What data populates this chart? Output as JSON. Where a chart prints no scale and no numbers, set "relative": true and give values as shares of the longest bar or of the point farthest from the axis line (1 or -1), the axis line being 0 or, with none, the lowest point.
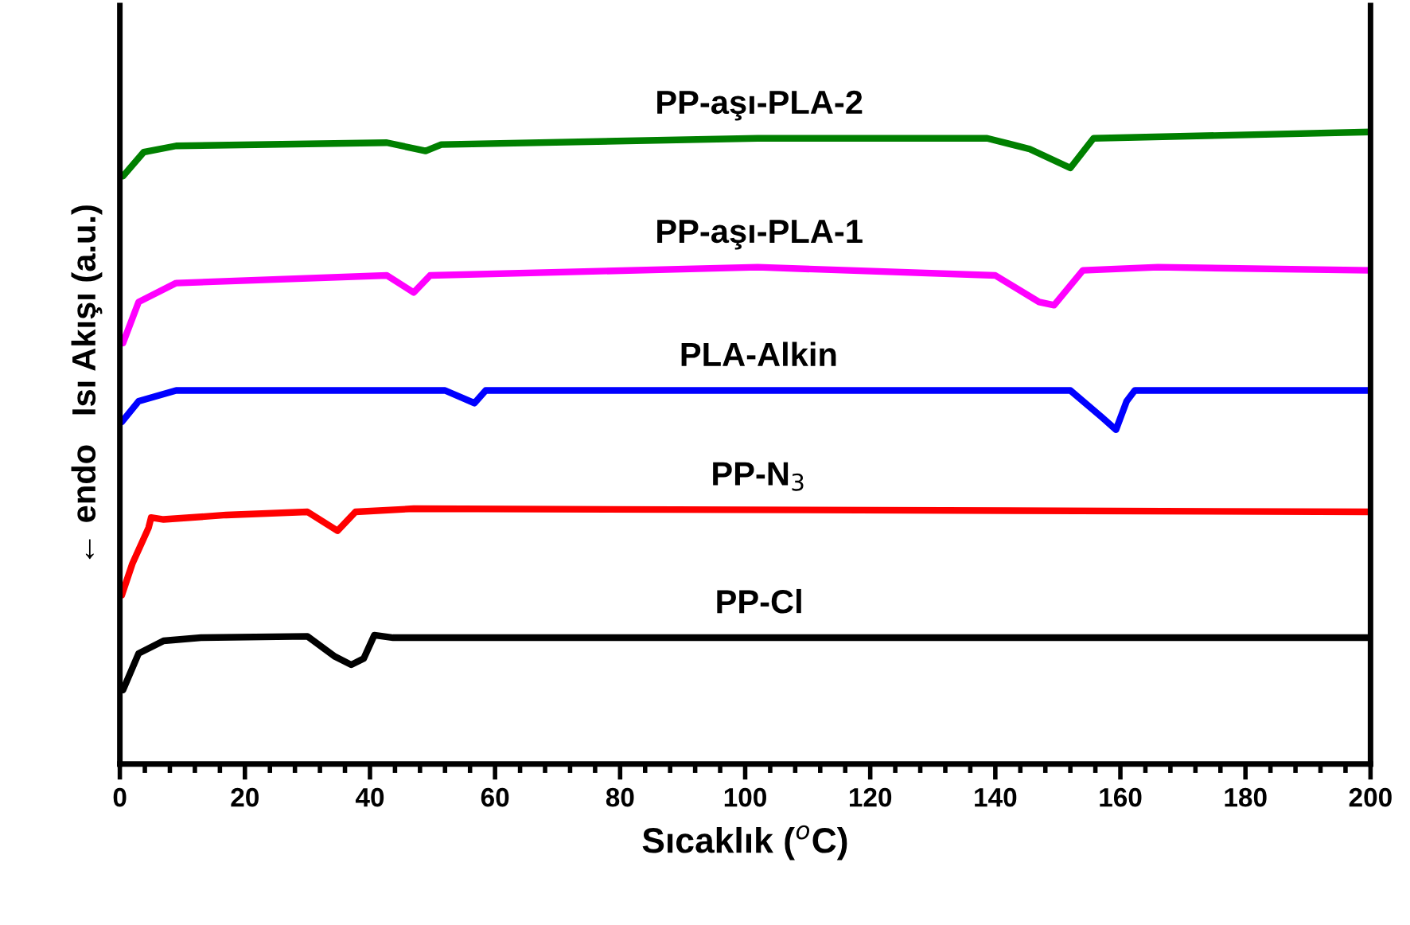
{
  "chart_data": {
    "type": "line",
    "relative": true,
    "xlabel": "Sıcaklık ($^{o}$C)",
    "ylabel": "← endo   Isı Akışı (a.u.)",
    "xlim": [
      0,
      200
    ],
    "xticks": [
      0,
      {
        "value": 4,
        "label": null
      },
      {
        "value": 8,
        "label": null
      },
      {
        "value": 12,
        "label": null
      },
      {
        "value": 16,
        "label": null
      },
      20,
      {
        "value": 24,
        "label": null
      },
      {
        "value": 28,
        "label": null
      },
      {
        "value": 32,
        "label": null
      },
      {
        "value": 36,
        "label": null
      },
      40,
      {
        "value": 44,
        "label": null
      },
      {
        "value": 48,
        "label": null
      },
      {
        "value": 52,
        "label": null
      },
      {
        "value": 56,
        "label": null
      },
      60,
      {
        "value": 64,
        "label": null
      },
      {
        "value": 68,
        "label": null
      },
      {
        "value": 72,
        "label": null
      },
      {
        "value": 76,
        "label": null
      },
      80,
      {
        "value": 84,
        "label": null
      },
      {
        "value": 88,
        "label": null
      },
      {
        "value": 92,
        "label": null
      },
      {
        "value": 96,
        "label": null
      },
      100,
      {
        "value": 104,
        "label": null
      },
      {
        "value": 108,
        "label": null
      },
      {
        "value": 112,
        "label": null
      },
      {
        "value": 116,
        "label": null
      },
      120,
      {
        "value": 124,
        "label": null
      },
      {
        "value": 128,
        "label": null
      },
      {
        "value": 132,
        "label": null
      },
      {
        "value": 136,
        "label": null
      },
      140,
      {
        "value": 144,
        "label": null
      },
      {
        "value": 148,
        "label": null
      },
      {
        "value": 152,
        "label": null
      },
      {
        "value": 156,
        "label": null
      },
      160,
      {
        "value": 164,
        "label": null
      },
      {
        "value": 168,
        "label": null
      },
      {
        "value": 172,
        "label": null
      },
      {
        "value": 176,
        "label": null
      },
      180,
      {
        "value": 184,
        "label": null
      },
      {
        "value": 188,
        "label": null
      },
      {
        "value": 192,
        "label": null
      },
      {
        "value": 196,
        "label": null
      },
      200
    ],
    "tick_labels": "x",
    "grid": false,
    "legend": false,
    "marker": "none",
    "line_style": "solid",
    "series": [
      {
        "name": "PP-Cl",
        "color": "#000000",
        "x": [
          0.5,
          3,
          7,
          13,
          30,
          34.4,
          37,
          39,
          40.7,
          43.7,
          200
        ],
        "values": [
          0.117,
          0.175,
          0.195,
          0.2,
          0.202,
          0.17,
          0.157,
          0.167,
          0.204,
          0.2,
          0.2
        ]
      },
      {
        "name": "PP-N$_{3}$",
        "color": "#ff0000",
        "x": [
          0.3,
          2,
          4.6,
          5,
          7,
          17,
          30,
          34.8,
          37.7,
          47,
          200
        ],
        "values": [
          0.267,
          0.317,
          0.374,
          0.39,
          0.387,
          0.394,
          0.399,
          0.369,
          0.399,
          0.404,
          0.399
        ]
      },
      {
        "name": "PLA-Alkin",
        "color": "#0000ff",
        "x": [
          0.3,
          3,
          9,
          52,
          56.7,
          58.5,
          152,
          157,
          159.3,
          161,
          162.3,
          200
        ],
        "values": [
          0.541,
          0.574,
          0.591,
          0.591,
          0.571,
          0.591,
          0.591,
          0.549,
          0.529,
          0.574,
          0.591,
          0.591
        ]
      },
      {
        "name": "PP-aşı-PLA-1",
        "color": "#ff00ff",
        "x": [
          0.5,
          3,
          9,
          42.7,
          47,
          49.6,
          102,
          140,
          147,
          149.4,
          154,
          166,
          200
        ],
        "values": [
          0.666,
          0.731,
          0.761,
          0.773,
          0.746,
          0.773,
          0.786,
          0.773,
          0.731,
          0.726,
          0.781,
          0.786,
          0.781
        ]
      },
      {
        "name": "PP-aşı-PLA-2",
        "color": "#008000",
        "x": [
          0.5,
          3.8,
          9,
          42.7,
          48.9,
          51.4,
          102,
          138.7,
          145.5,
          152,
          155.7,
          200
        ],
        "values": [
          0.93,
          0.968,
          0.978,
          0.983,
          0.97,
          0.98,
          0.99,
          0.99,
          0.973,
          0.943,
          0.99,
          1.0
        ]
      }
    ]
  }
}
